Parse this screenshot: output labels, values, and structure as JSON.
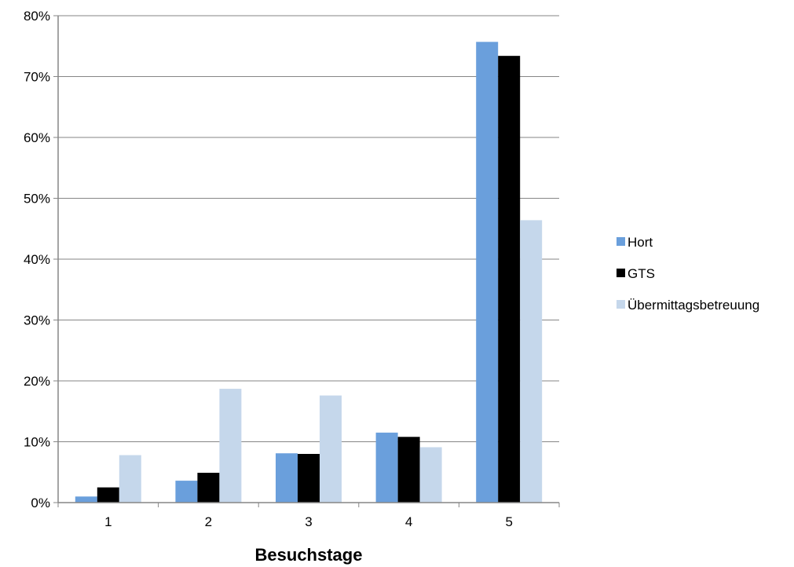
{
  "chart_data": {
    "type": "bar",
    "title": "",
    "xlabel": "Besuchstage",
    "ylabel": "",
    "categories": [
      "1",
      "2",
      "3",
      "4",
      "5"
    ],
    "series": [
      {
        "name": "Hort",
        "color": "#6a9fdc",
        "values": [
          1.0,
          3.6,
          8.1,
          11.5,
          75.7
        ]
      },
      {
        "name": "GTS",
        "color": "#000000",
        "values": [
          2.5,
          4.9,
          8.0,
          10.8,
          73.4
        ]
      },
      {
        "name": "Übermittagsbetreuung",
        "color": "#c5d7eb",
        "values": [
          7.8,
          18.7,
          17.6,
          9.1,
          46.4
        ]
      }
    ],
    "ylim": [
      0,
      80
    ],
    "yticks": [
      "0%",
      "10%",
      "20%",
      "30%",
      "40%",
      "50%",
      "60%",
      "70%",
      "80%"
    ],
    "grid": true,
    "legend_position": "right"
  }
}
